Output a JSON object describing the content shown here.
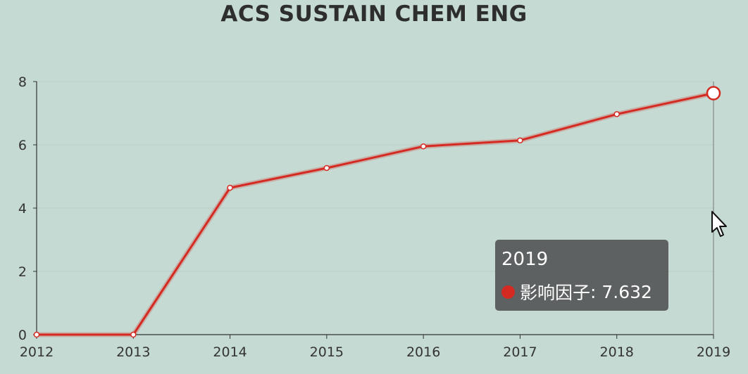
{
  "chart_data": {
    "type": "line",
    "title": "ACS SUSTAIN CHEM ENG",
    "categories": [
      "2012",
      "2013",
      "2014",
      "2015",
      "2016",
      "2017",
      "2018",
      "2019"
    ],
    "series": [
      {
        "name": "影响因子",
        "values": [
          0,
          0,
          4.642,
          5.267,
          5.951,
          6.14,
          6.97,
          7.632
        ]
      }
    ],
    "y_ticks": [
      "0",
      "2",
      "4",
      "6",
      "8"
    ],
    "ylim": [
      0,
      8
    ],
    "grid": "horizontal",
    "line_color": "#d42a22"
  },
  "tooltip": {
    "title": "2019",
    "series_label": "影响因子",
    "value": "7.632",
    "dot_color": "#d42a22"
  },
  "icons": {
    "cursor": "arrow-cursor-icon"
  }
}
